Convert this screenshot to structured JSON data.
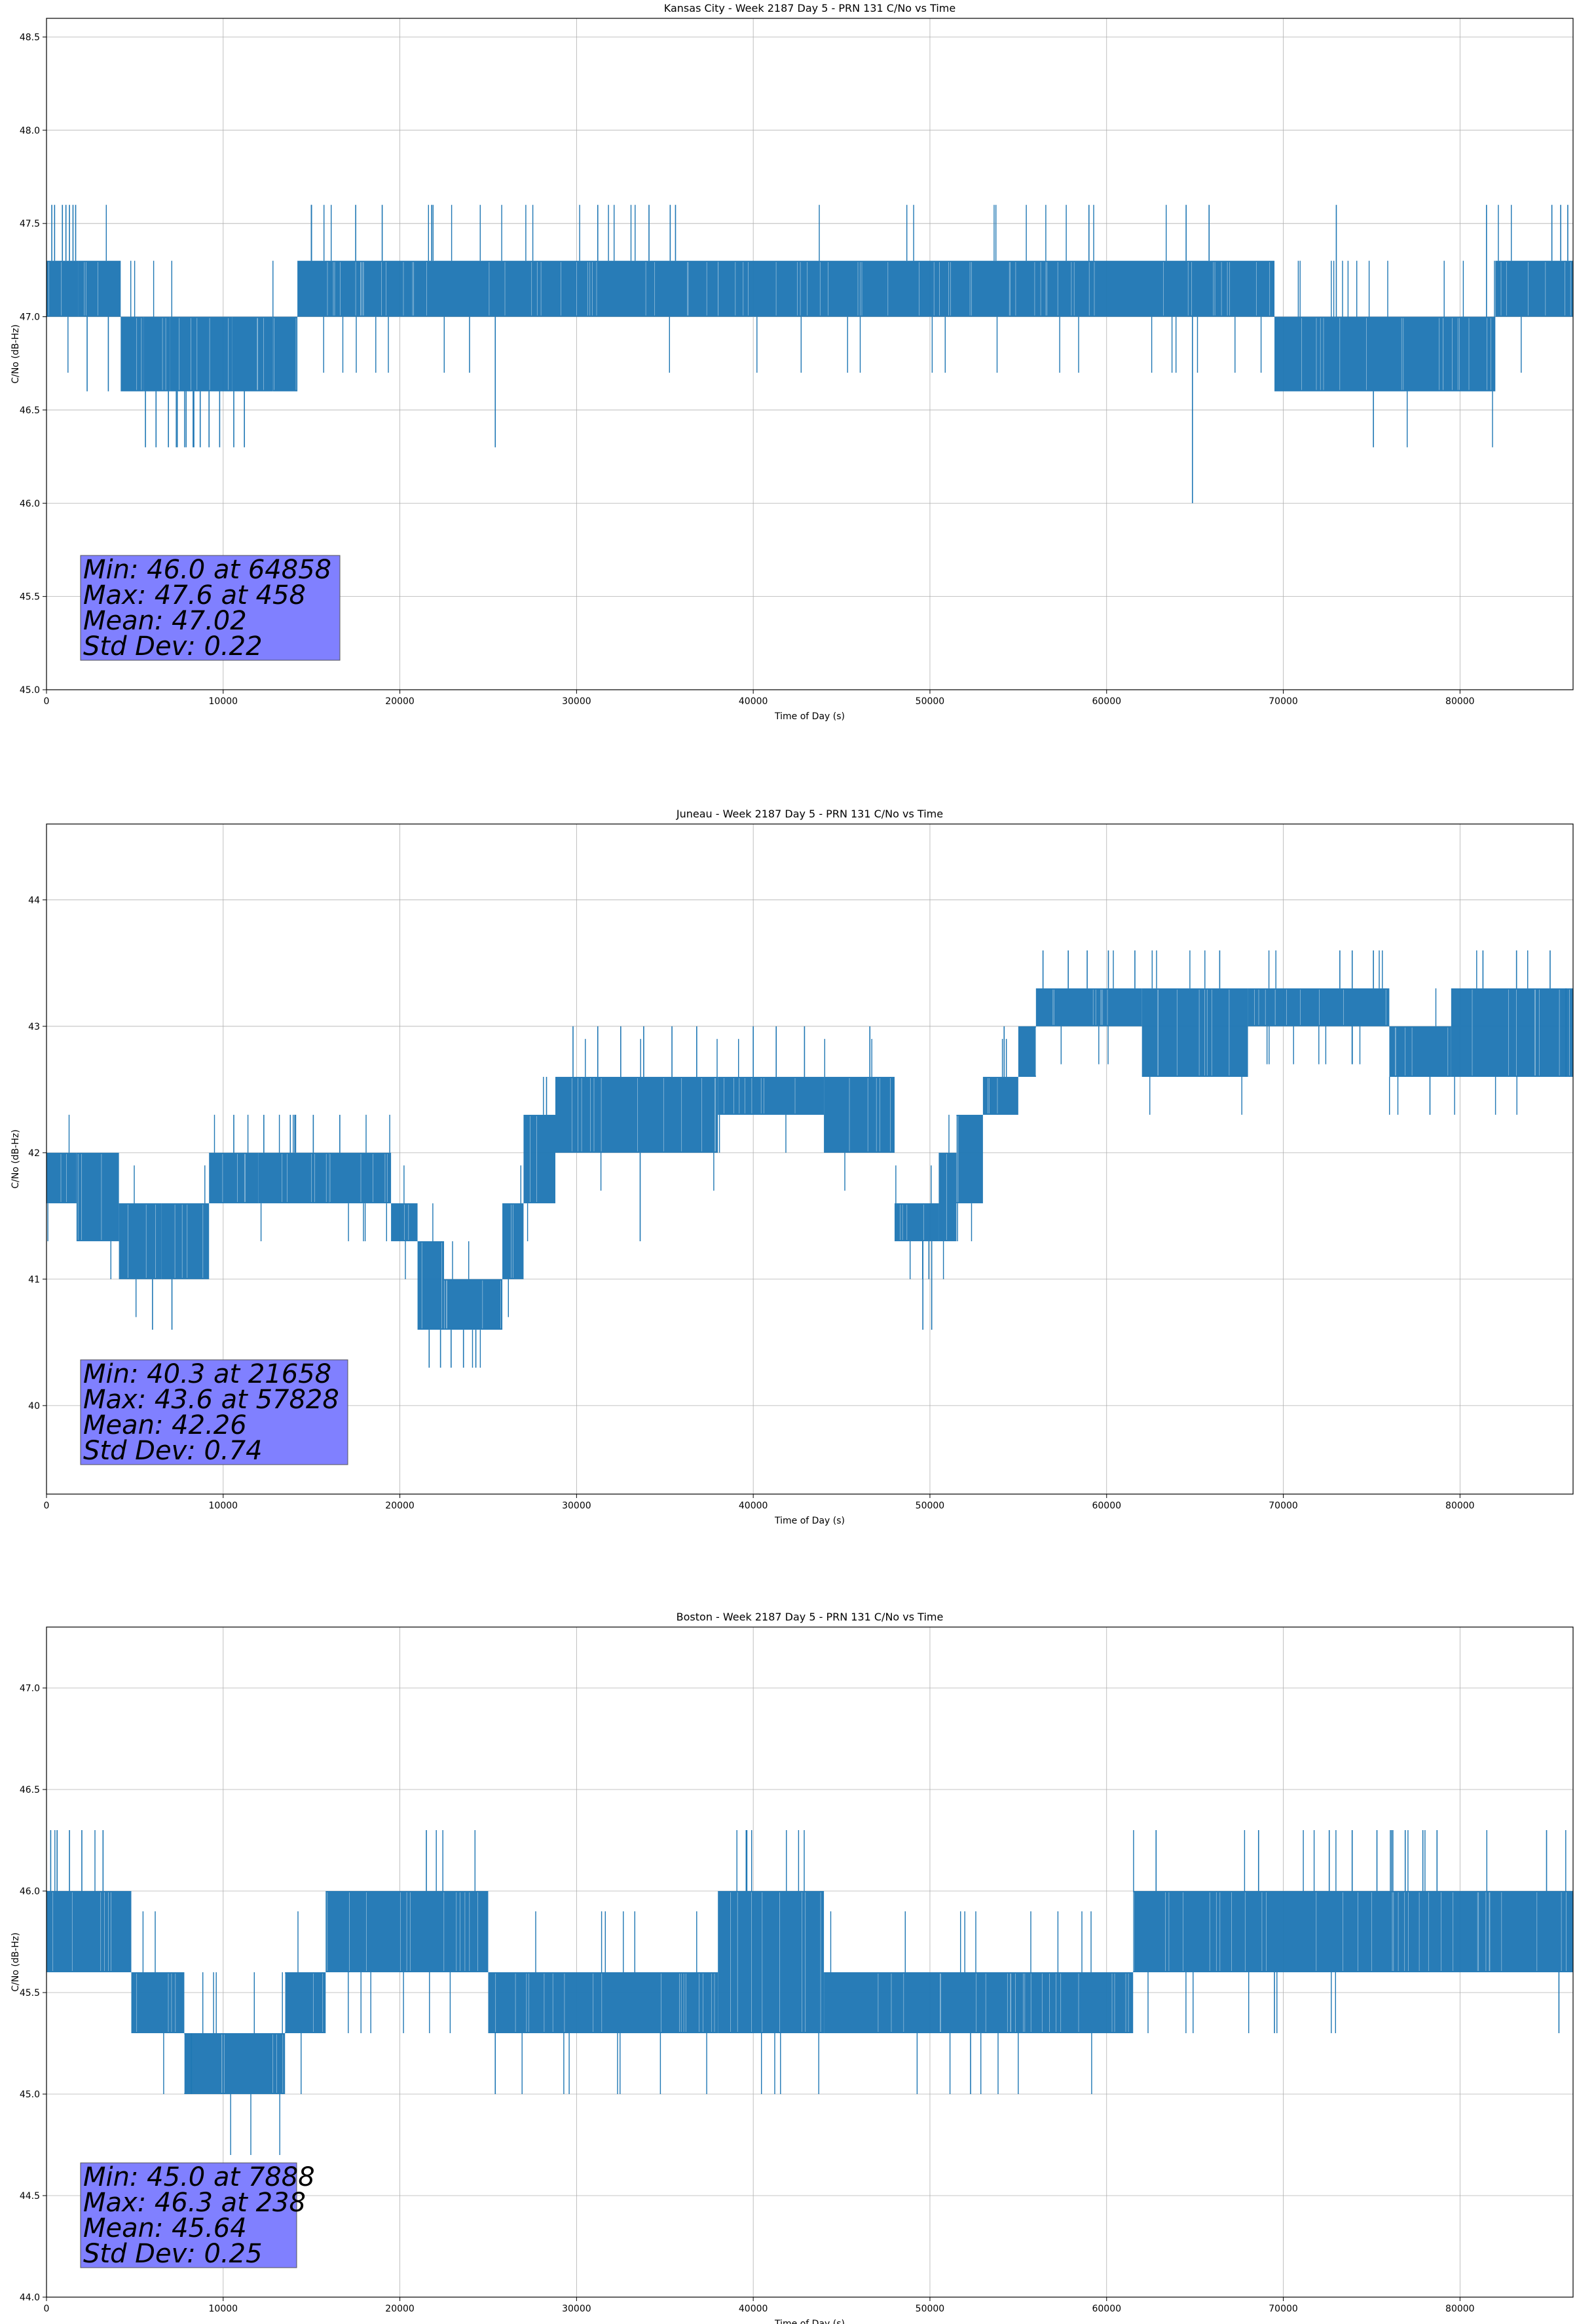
{
  "figure": {
    "x_label": "Time of Day (s)",
    "y_label": "C/No (dB-Hz)"
  },
  "chart_data": [
    {
      "type": "line",
      "title": "Kansas City - Week 2187 Day 5 - PRN 131 C/No vs Time",
      "xlabel": "Time of Day (s)",
      "ylabel": "C/No (dB-Hz)",
      "xlim": [
        0,
        86400
      ],
      "ylim": [
        45.0,
        48.6
      ],
      "xticks": [
        0,
        10000,
        20000,
        30000,
        40000,
        50000,
        60000,
        70000,
        80000
      ],
      "xtick_labels": [
        "0",
        "10000",
        "20000",
        "30000",
        "40000",
        "50000",
        "60000",
        "70000",
        "80000"
      ],
      "yticks": [
        45.0,
        45.5,
        46.0,
        46.5,
        47.0,
        47.5,
        48.0,
        48.5
      ],
      "ytick_labels": [
        "45.0",
        "45.5",
        "46.0",
        "46.5",
        "47.0",
        "47.5",
        "48.0",
        "48.5"
      ],
      "grid": true,
      "quantization_step": 0.3,
      "series": [
        {
          "name": "C/No",
          "color": "#1f77b4",
          "band_segments": [
            {
              "x0": 0,
              "x1": 1800,
              "lo": 47.0,
              "hi": 47.3
            },
            {
              "x0": 1800,
              "x1": 4200,
              "lo": 47.0,
              "hi": 47.3
            },
            {
              "x0": 4200,
              "x1": 5500,
              "lo": 46.6,
              "hi": 47.0
            },
            {
              "x0": 5500,
              "x1": 7000,
              "lo": 46.6,
              "hi": 47.0
            },
            {
              "x0": 7000,
              "x1": 10500,
              "lo": 46.6,
              "hi": 47.0
            },
            {
              "x0": 10500,
              "x1": 12800,
              "lo": 46.6,
              "hi": 47.0
            },
            {
              "x0": 12800,
              "x1": 14200,
              "lo": 46.6,
              "hi": 47.0
            },
            {
              "x0": 14200,
              "x1": 38000,
              "lo": 47.0,
              "hi": 47.3
            },
            {
              "x0": 38000,
              "x1": 47500,
              "lo": 47.0,
              "hi": 47.3
            },
            {
              "x0": 47500,
              "x1": 69500,
              "lo": 47.0,
              "hi": 47.3
            },
            {
              "x0": 69500,
              "x1": 82000,
              "lo": 46.6,
              "hi": 47.0
            },
            {
              "x0": 82000,
              "x1": 86400,
              "lo": 47.0,
              "hi": 47.3
            }
          ],
          "spikes": [
            {
              "x": 300,
              "y": 47.6
            },
            {
              "x": 458,
              "y": 47.6
            },
            {
              "x": 900,
              "y": 47.6
            },
            {
              "x": 1100,
              "y": 47.6
            },
            {
              "x": 1300,
              "y": 47.6
            },
            {
              "x": 1500,
              "y": 47.6
            },
            {
              "x": 1650,
              "y": 47.6
            },
            {
              "x": 2300,
              "y": 46.6
            },
            {
              "x": 3500,
              "y": 46.6
            },
            {
              "x": 5600,
              "y": 46.3
            },
            {
              "x": 6200,
              "y": 46.3
            },
            {
              "x": 6900,
              "y": 46.3
            },
            {
              "x": 7400,
              "y": 46.3
            },
            {
              "x": 7900,
              "y": 46.3
            },
            {
              "x": 8300,
              "y": 46.3
            },
            {
              "x": 8700,
              "y": 46.3
            },
            {
              "x": 9200,
              "y": 46.3
            },
            {
              "x": 9800,
              "y": 46.3
            },
            {
              "x": 10600,
              "y": 46.3
            },
            {
              "x": 11200,
              "y": 46.3
            },
            {
              "x": 15000,
              "y": 47.6
            },
            {
              "x": 17500,
              "y": 47.6
            },
            {
              "x": 19000,
              "y": 47.6
            },
            {
              "x": 21800,
              "y": 47.6
            },
            {
              "x": 25400,
              "y": 46.3
            },
            {
              "x": 31200,
              "y": 47.6
            },
            {
              "x": 34100,
              "y": 47.6
            },
            {
              "x": 35300,
              "y": 47.6
            },
            {
              "x": 35600,
              "y": 47.6
            },
            {
              "x": 59000,
              "y": 47.6
            },
            {
              "x": 64500,
              "y": 47.6
            },
            {
              "x": 64858,
              "y": 46.0
            },
            {
              "x": 65800,
              "y": 47.6
            },
            {
              "x": 73000,
              "y": 47.6
            },
            {
              "x": 75100,
              "y": 46.3
            },
            {
              "x": 81500,
              "y": 47.6
            },
            {
              "x": 85200,
              "y": 47.6
            },
            {
              "x": 85700,
              "y": 47.6
            },
            {
              "x": 86100,
              "y": 47.6
            }
          ]
        }
      ],
      "stats": {
        "min_label": "Min: 46.0 at 64858",
        "max_label": "Max: 47.6 at 458",
        "mean_label": "Mean: 47.02",
        "std_label": "Std Dev: 0.22",
        "box_color": "#8080ff"
      }
    },
    {
      "type": "line",
      "title": "Juneau - Week 2187 Day 5 - PRN 131 C/No vs Time",
      "xlabel": "Time of Day (s)",
      "ylabel": "C/No (dB-Hz)",
      "xlim": [
        0,
        86400
      ],
      "ylim": [
        39.3,
        44.6
      ],
      "xticks": [
        0,
        10000,
        20000,
        30000,
        40000,
        50000,
        60000,
        70000,
        80000
      ],
      "xtick_labels": [
        "0",
        "10000",
        "20000",
        "30000",
        "40000",
        "50000",
        "60000",
        "70000",
        "80000"
      ],
      "yticks": [
        40,
        41,
        42,
        43,
        44
      ],
      "ytick_labels": [
        "40",
        "41",
        "42",
        "43",
        "44"
      ],
      "grid": true,
      "quantization_step": 0.3,
      "series": [
        {
          "name": "C/No",
          "color": "#1f77b4",
          "band_segments": [
            {
              "x0": 0,
              "x1": 1700,
              "lo": 41.6,
              "hi": 42.0
            },
            {
              "x0": 1700,
              "x1": 4100,
              "lo": 41.3,
              "hi": 42.0
            },
            {
              "x0": 4100,
              "x1": 6500,
              "lo": 41.0,
              "hi": 41.6
            },
            {
              "x0": 6500,
              "x1": 9200,
              "lo": 41.0,
              "hi": 41.6
            },
            {
              "x0": 9200,
              "x1": 12000,
              "lo": 41.6,
              "hi": 42.0
            },
            {
              "x0": 12000,
              "x1": 16000,
              "lo": 41.6,
              "hi": 42.0
            },
            {
              "x0": 16000,
              "x1": 19500,
              "lo": 41.6,
              "hi": 42.0
            },
            {
              "x0": 19500,
              "x1": 21000,
              "lo": 41.3,
              "hi": 41.6
            },
            {
              "x0": 21000,
              "x1": 22500,
              "lo": 40.6,
              "hi": 41.3
            },
            {
              "x0": 22500,
              "x1": 25800,
              "lo": 40.6,
              "hi": 41.0
            },
            {
              "x0": 25800,
              "x1": 27000,
              "lo": 41.0,
              "hi": 41.6
            },
            {
              "x0": 27000,
              "x1": 28800,
              "lo": 41.6,
              "hi": 42.3
            },
            {
              "x0": 28800,
              "x1": 38000,
              "lo": 42.0,
              "hi": 42.6
            },
            {
              "x0": 38000,
              "x1": 44000,
              "lo": 42.3,
              "hi": 42.6
            },
            {
              "x0": 44000,
              "x1": 48000,
              "lo": 42.0,
              "hi": 42.6
            },
            {
              "x0": 48000,
              "x1": 50500,
              "lo": 41.3,
              "hi": 41.6
            },
            {
              "x0": 50500,
              "x1": 51500,
              "lo": 41.3,
              "hi": 42.0
            },
            {
              "x0": 51500,
              "x1": 53000,
              "lo": 41.6,
              "hi": 42.3
            },
            {
              "x0": 53000,
              "x1": 55000,
              "lo": 42.3,
              "hi": 42.6
            },
            {
              "x0": 55000,
              "x1": 56000,
              "lo": 42.6,
              "hi": 43.0
            },
            {
              "x0": 56000,
              "x1": 62000,
              "lo": 43.0,
              "hi": 43.3
            },
            {
              "x0": 62000,
              "x1": 68000,
              "lo": 42.6,
              "hi": 43.3
            },
            {
              "x0": 68000,
              "x1": 76000,
              "lo": 43.0,
              "hi": 43.3
            },
            {
              "x0": 76000,
              "x1": 79500,
              "lo": 42.6,
              "hi": 43.0
            },
            {
              "x0": 79500,
              "x1": 86400,
              "lo": 42.6,
              "hi": 43.3
            }
          ],
          "spikes": [
            {
              "x": 6000,
              "y": 40.6
            },
            {
              "x": 7100,
              "y": 40.6
            },
            {
              "x": 10600,
              "y": 42.3
            },
            {
              "x": 12300,
              "y": 42.3
            },
            {
              "x": 13800,
              "y": 42.3
            },
            {
              "x": 15100,
              "y": 42.3
            },
            {
              "x": 16600,
              "y": 42.3
            },
            {
              "x": 21658,
              "y": 40.3
            },
            {
              "x": 22300,
              "y": 40.3
            },
            {
              "x": 22900,
              "y": 40.3
            },
            {
              "x": 23600,
              "y": 40.3
            },
            {
              "x": 24300,
              "y": 40.3
            },
            {
              "x": 28300,
              "y": 42.6
            },
            {
              "x": 29800,
              "y": 43.0
            },
            {
              "x": 31200,
              "y": 43.0
            },
            {
              "x": 32500,
              "y": 43.0
            },
            {
              "x": 33800,
              "y": 43.0
            },
            {
              "x": 35400,
              "y": 43.0
            },
            {
              "x": 36800,
              "y": 43.0
            },
            {
              "x": 40000,
              "y": 43.0
            },
            {
              "x": 41300,
              "y": 43.0
            },
            {
              "x": 42900,
              "y": 43.0
            },
            {
              "x": 46600,
              "y": 43.0
            },
            {
              "x": 33600,
              "y": 41.3
            },
            {
              "x": 49600,
              "y": 40.6
            },
            {
              "x": 50100,
              "y": 40.6
            },
            {
              "x": 54200,
              "y": 43.0
            },
            {
              "x": 56400,
              "y": 43.6
            },
            {
              "x": 57828,
              "y": 43.6
            },
            {
              "x": 58900,
              "y": 43.6
            },
            {
              "x": 60100,
              "y": 43.6
            },
            {
              "x": 61600,
              "y": 43.6
            },
            {
              "x": 66400,
              "y": 43.6
            },
            {
              "x": 73200,
              "y": 43.6
            },
            {
              "x": 73900,
              "y": 43.6
            },
            {
              "x": 75100,
              "y": 43.6
            },
            {
              "x": 78300,
              "y": 42.3
            },
            {
              "x": 81300,
              "y": 43.6
            },
            {
              "x": 83200,
              "y": 43.6
            },
            {
              "x": 85100,
              "y": 43.6
            },
            {
              "x": 86000,
              "y": 42.6
            }
          ]
        }
      ],
      "stats": {
        "min_label": "Min: 40.3 at 21658",
        "max_label": "Max: 43.6 at 57828",
        "mean_label": "Mean: 42.26",
        "std_label": "Std Dev: 0.74",
        "box_color": "#8080ff"
      }
    },
    {
      "type": "line",
      "title": "Boston - Week 2187 Day 5 - PRN 131 C/No vs Time",
      "xlabel": "Time of Day (s)",
      "ylabel": "C/No (dB-Hz)",
      "xlim": [
        0,
        86400
      ],
      "ylim": [
        44.0,
        47.3
      ],
      "xticks": [
        0,
        10000,
        20000,
        30000,
        40000,
        50000,
        60000,
        70000,
        80000
      ],
      "xtick_labels": [
        "0",
        "10000",
        "20000",
        "30000",
        "40000",
        "50000",
        "60000",
        "70000",
        "80000"
      ],
      "yticks": [
        44.0,
        44.5,
        45.0,
        45.5,
        46.0,
        46.5,
        47.0
      ],
      "ytick_labels": [
        "44.0",
        "44.5",
        "45.0",
        "45.5",
        "46.0",
        "46.5",
        "47.0"
      ],
      "grid": true,
      "quantization_step": 0.3,
      "series": [
        {
          "name": "C/No",
          "color": "#1f77b4",
          "band_segments": [
            {
              "x0": 0,
              "x1": 4800,
              "lo": 45.6,
              "hi": 46.0
            },
            {
              "x0": 4800,
              "x1": 7800,
              "lo": 45.3,
              "hi": 45.6
            },
            {
              "x0": 7800,
              "x1": 13500,
              "lo": 45.0,
              "hi": 45.3
            },
            {
              "x0": 13500,
              "x1": 15800,
              "lo": 45.3,
              "hi": 45.6
            },
            {
              "x0": 15800,
              "x1": 25000,
              "lo": 45.6,
              "hi": 46.0
            },
            {
              "x0": 25000,
              "x1": 38000,
              "lo": 45.3,
              "hi": 45.6
            },
            {
              "x0": 38000,
              "x1": 44000,
              "lo": 45.3,
              "hi": 46.0
            },
            {
              "x0": 44000,
              "x1": 61500,
              "lo": 45.3,
              "hi": 45.6
            },
            {
              "x0": 61500,
              "x1": 86400,
              "lo": 45.6,
              "hi": 46.0
            }
          ],
          "spikes": [
            {
              "x": 238,
              "y": 46.3
            },
            {
              "x": 600,
              "y": 46.3
            },
            {
              "x": 1300,
              "y": 46.3
            },
            {
              "x": 2000,
              "y": 46.3
            },
            {
              "x": 3200,
              "y": 46.3
            },
            {
              "x": 8200,
              "y": 45.0
            },
            {
              "x": 21500,
              "y": 46.3
            },
            {
              "x": 25400,
              "y": 45.0
            },
            {
              "x": 52300,
              "y": 45.0
            },
            {
              "x": 62800,
              "y": 46.3
            },
            {
              "x": 68600,
              "y": 46.3
            },
            {
              "x": 69500,
              "y": 45.3
            },
            {
              "x": 72600,
              "y": 46.3
            },
            {
              "x": 73900,
              "y": 46.3
            },
            {
              "x": 75300,
              "y": 46.3
            },
            {
              "x": 76200,
              "y": 46.3
            },
            {
              "x": 76900,
              "y": 46.3
            },
            {
              "x": 77900,
              "y": 46.3
            },
            {
              "x": 78700,
              "y": 46.3
            },
            {
              "x": 84900,
              "y": 46.3
            },
            {
              "x": 85600,
              "y": 45.3
            }
          ]
        }
      ],
      "stats": {
        "min_label": "Min: 45.0 at 7888",
        "max_label": "Max: 46.3 at 238",
        "mean_label": "Mean: 45.64",
        "std_label": "Std Dev: 0.25",
        "box_color": "#8080ff"
      }
    }
  ]
}
